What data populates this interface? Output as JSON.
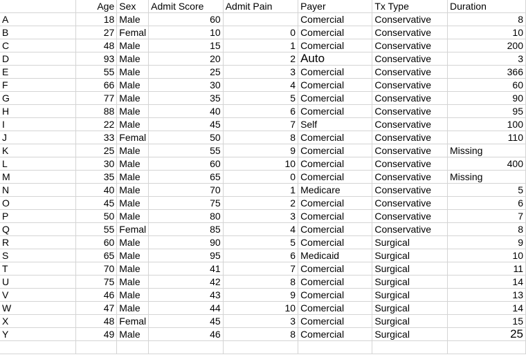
{
  "headers": [
    "",
    "Age",
    "Sex",
    "Admit Score",
    "Admit Pain",
    "Payer",
    "Tx Type",
    "Duration"
  ],
  "rows": [
    [
      "A",
      "18",
      "Male",
      "60",
      "",
      "Comercial",
      "Conservative",
      "8"
    ],
    [
      "B",
      "27",
      "Femal",
      "10",
      "0",
      "Comercial",
      "Conservative",
      "10"
    ],
    [
      "C",
      "48",
      "Male",
      "15",
      "1",
      "Comercial",
      "Conservative",
      "200"
    ],
    [
      "D",
      "93",
      "Male",
      "20",
      "2",
      "Auto",
      "Conservative",
      "3"
    ],
    [
      "E",
      "55",
      "Male",
      "25",
      "3",
      "Comercial",
      "Conservative",
      "366"
    ],
    [
      "F",
      "66",
      "Male",
      "30",
      "4",
      "Comercial",
      "Conservative",
      "60"
    ],
    [
      "G",
      "77",
      "Male",
      "35",
      "5",
      "Comercial",
      "Conservative",
      "90"
    ],
    [
      "H",
      "88",
      "Male",
      "40",
      "6",
      "Comercial",
      "Conservative",
      "95"
    ],
    [
      "I",
      "22",
      "Male",
      "45",
      "7",
      "Self",
      "Conservative",
      "100"
    ],
    [
      "J",
      "33",
      "Femal",
      "50",
      "8",
      "Comercial",
      "Conservative",
      "110"
    ],
    [
      "K",
      "25",
      "Male",
      "55",
      "9",
      "Comercial",
      "Conservative",
      "Missing"
    ],
    [
      "L",
      "30",
      "Male",
      "60",
      "10",
      "Comercial",
      "Conservative",
      "400"
    ],
    [
      "M",
      "35",
      "Male",
      "65",
      "0",
      "Comercial",
      "Conservative",
      "Missing"
    ],
    [
      "N",
      "40",
      "Male",
      "70",
      "1",
      "Medicare",
      "Conservative",
      "5"
    ],
    [
      "O",
      "45",
      "Male",
      "75",
      "2",
      "Comercial",
      "Conservative",
      "6"
    ],
    [
      "P",
      "50",
      "Male",
      "80",
      "3",
      "Comercial",
      "Conservative",
      "7"
    ],
    [
      "Q",
      "55",
      "Femal",
      "85",
      "4",
      "Comercial",
      "Conservative",
      "8"
    ],
    [
      "R",
      "60",
      "Male",
      "90",
      "5",
      "Comercial",
      "Surgical",
      "9"
    ],
    [
      "S",
      "65",
      "Male",
      "95",
      "6",
      "Medicaid",
      "Surgical",
      "10"
    ],
    [
      "T",
      "70",
      "Male",
      "41",
      "7",
      "Comercial",
      "Surgical",
      "11"
    ],
    [
      "U",
      "75",
      "Male",
      "42",
      "8",
      "Comercial",
      "Surgical",
      "14"
    ],
    [
      "V",
      "46",
      "Male",
      "43",
      "9",
      "Comercial",
      "Surgical",
      "13"
    ],
    [
      "W",
      "47",
      "Male",
      "44",
      "10",
      "Comercial",
      "Surgical",
      "14"
    ],
    [
      "X",
      "48",
      "Femal",
      "45",
      "3",
      "Comercial",
      "Surgical",
      "15"
    ],
    [
      "Y",
      "49",
      "Male",
      "46",
      "8",
      "Comercial",
      "Surgical",
      "25"
    ],
    [
      "",
      "",
      "",
      "",
      "",
      "",
      "",
      ""
    ]
  ]
}
